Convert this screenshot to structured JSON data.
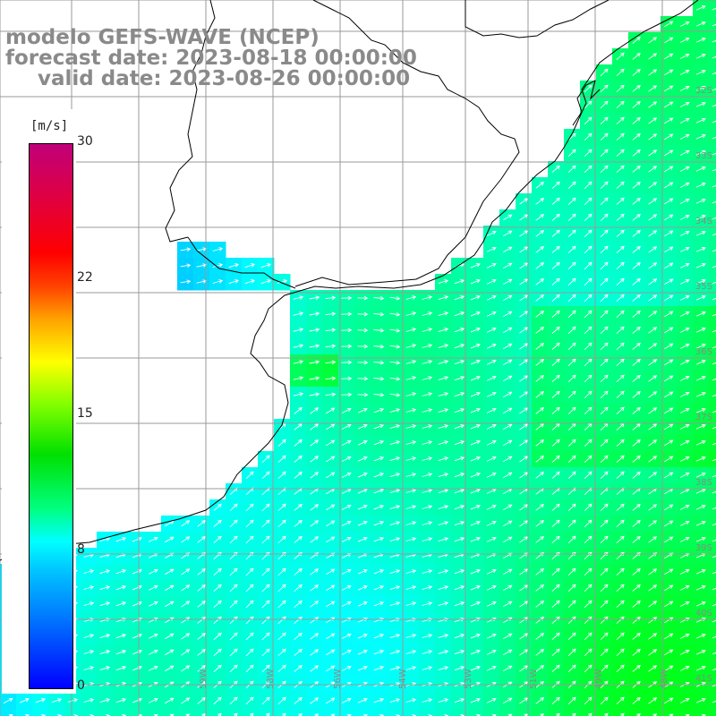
{
  "title": {
    "line1": "modelo GEFS-WAVE (NCEP)",
    "line2": "forecast date: 2023-08-18 00:00:00",
    "line3": "valid date: 2023-08-26 00:00:00"
  },
  "colorbar": {
    "unit": "[m/s]",
    "ticks": [
      "30",
      "22",
      "15",
      "8",
      "0"
    ],
    "tick_values": [
      30,
      22,
      15,
      8,
      0
    ],
    "min": 0,
    "max": 30
  },
  "lat_labels": [
    "32S",
    "33S",
    "34S",
    "35S",
    "36S",
    "37S",
    "38S",
    "39S",
    "40S",
    "41S"
  ],
  "lon_labels": [
    "61W",
    "59W",
    "58W",
    "56W",
    "54W",
    "53W",
    "51W",
    "49W",
    "48W"
  ],
  "colors": {
    "land": "#ffffff",
    "grid": "#9a9a9a",
    "coast": "#000000",
    "arrow": "#ffffff",
    "title": "#8a8a8a"
  },
  "field_description": "wind speed shading with white direction arrows; weaker (blue) near coast, stronger (green) offshore to the east"
}
